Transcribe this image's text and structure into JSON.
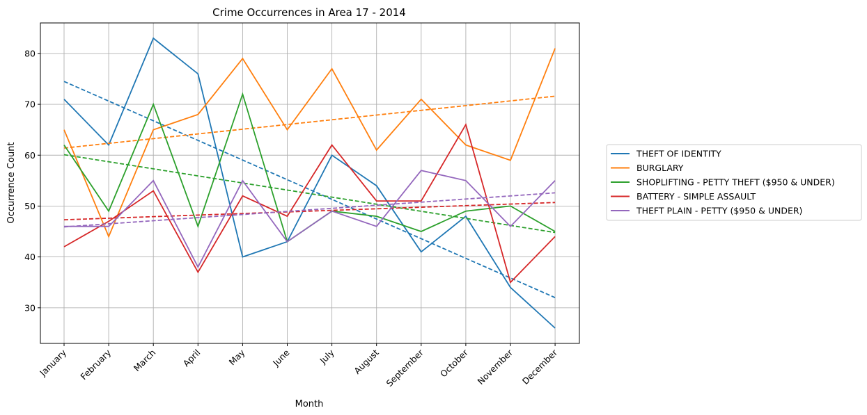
{
  "chart_data": {
    "type": "line",
    "title": "Crime Occurrences in Area 17 - 2014",
    "xlabel": "Month",
    "ylabel": "Occurrence Count",
    "categories": [
      "January",
      "February",
      "March",
      "April",
      "May",
      "June",
      "July",
      "August",
      "September",
      "October",
      "November",
      "December"
    ],
    "ylim": [
      23,
      86
    ],
    "yticks": [
      30,
      40,
      50,
      60,
      70,
      80
    ],
    "grid": true,
    "legend_position": "outside-right",
    "series": [
      {
        "name": "THEFT OF IDENTITY",
        "color": "#1f77b4",
        "values": [
          71,
          62,
          83,
          76,
          40,
          43,
          60,
          54,
          41,
          48,
          34,
          26
        ],
        "trend": [
          74.5,
          32
        ]
      },
      {
        "name": "BURGLARY",
        "color": "#ff7f0e",
        "values": [
          65,
          44,
          65,
          68,
          79,
          65,
          77,
          61,
          71,
          62,
          59,
          81
        ],
        "trend": [
          61.4,
          71.6
        ]
      },
      {
        "name": "SHOPLIFTING - PETTY THEFT ($950 & UNDER)",
        "color": "#2ca02c",
        "values": [
          62,
          49,
          70,
          46,
          72,
          43,
          49,
          48,
          45,
          49,
          50,
          45
        ],
        "trend": [
          60.1,
          44.8
        ]
      },
      {
        "name": "BATTERY - SIMPLE ASSAULT",
        "color": "#d62728",
        "values": [
          42,
          47,
          53,
          37,
          52,
          48,
          62,
          51,
          51,
          66,
          35,
          44
        ],
        "trend": [
          47.3,
          50.7
        ]
      },
      {
        "name": "THEFT PLAIN - PETTY ($950 & UNDER)",
        "color": "#9467bd",
        "values": [
          46,
          46,
          55,
          38,
          55,
          43,
          49,
          46,
          57,
          55,
          46,
          55
        ],
        "trend": [
          45.9,
          52.6
        ]
      }
    ]
  }
}
